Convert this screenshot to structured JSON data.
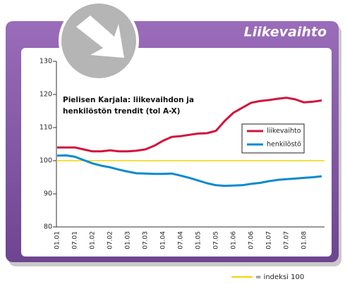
{
  "chart_data": {
    "type": "line",
    "title": "Liikevaihto",
    "subtitle": [
      "Pielisen Karjala: liikevaihdon ja",
      "henkilöstön trendit (tol A-X)"
    ],
    "categories": [
      "01.01",
      null,
      "07.01",
      null,
      "01.02",
      null,
      "07.02",
      null,
      "01.03",
      null,
      "07.03",
      null,
      "01.04",
      null,
      "07.04",
      null,
      "01.05",
      null,
      "07.05",
      null,
      "01.06",
      null,
      "07.06",
      null,
      "01.07",
      null,
      "07.07",
      null,
      "01.08",
      null,
      null
    ],
    "series": [
      {
        "name": "liikevaihto",
        "color": "#d2143c",
        "values": [
          104,
          104,
          104,
          103.4,
          102.8,
          102.8,
          103.1,
          102.8,
          102.8,
          103,
          103.4,
          104.5,
          106,
          107.2,
          107.4,
          107.8,
          108.2,
          108.3,
          109,
          112,
          114.5,
          116,
          117.5,
          118,
          118.3,
          118.7,
          119,
          118.5,
          117.6,
          117.8,
          118.2
        ]
      },
      {
        "name": "henkilöstö",
        "color": "#0a8ad2",
        "values": [
          101.5,
          101.6,
          101.2,
          100.2,
          99.2,
          98.5,
          98,
          97.3,
          96.7,
          96.2,
          96.1,
          96,
          96,
          96.1,
          95.5,
          94.8,
          94,
          93.2,
          92.6,
          92.4,
          92.5,
          92.6,
          93,
          93.3,
          93.8,
          94.2,
          94.4,
          94.6,
          94.8,
          95,
          95.3
        ]
      }
    ],
    "reference": {
      "value": 100,
      "color": "#f2d600",
      "label": "= indeksi 100"
    },
    "ylim": [
      80,
      130
    ],
    "yticks": [
      80,
      90,
      100,
      110,
      120,
      130
    ],
    "legend": "right"
  }
}
